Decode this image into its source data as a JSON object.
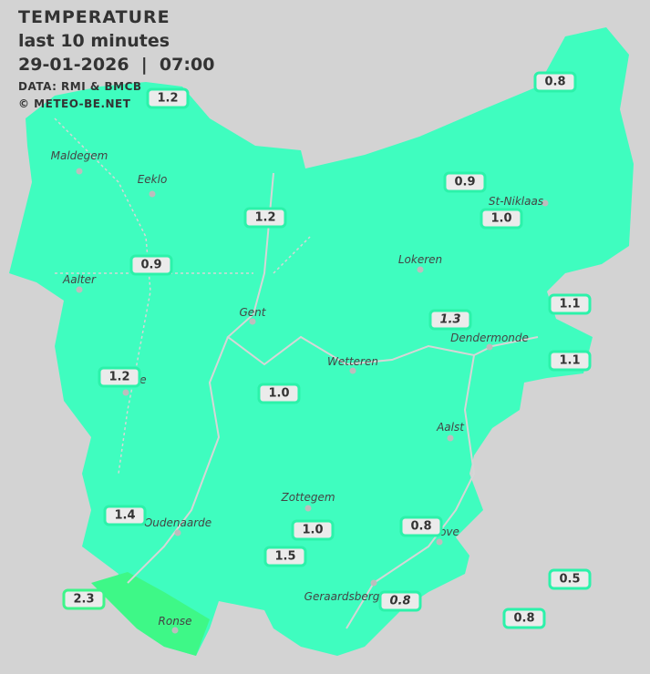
{
  "header": {
    "title": "TEMPERATURE",
    "period": "last 10 minutes",
    "datetime": "29-01-2026  |  07:00",
    "source": "DATA: RMI & BMCB",
    "copyright": "© METEO-BE.NET"
  },
  "colors": {
    "background": "#d3d3d3",
    "region_fill": "#3ffdbf",
    "warm_fill": "#3ef887",
    "label_border": "#2cf2aa"
  },
  "towns": [
    "Maldegem",
    "Eeklo",
    "St-Niklaas",
    "Lokeren",
    "Aalter",
    "Gent",
    "Dendermonde",
    "Wetteren",
    "e",
    "Aalst",
    "Zottegem",
    "Oudenaarde",
    "ove",
    "Geraardsberg",
    "Ronse"
  ],
  "stations": [
    {
      "value": "1.2"
    },
    {
      "value": "0.8"
    },
    {
      "value": "0.9"
    },
    {
      "value": "1.0"
    },
    {
      "value": "1.2"
    },
    {
      "value": "0.9"
    },
    {
      "value": "1.1"
    },
    {
      "value": "1.3",
      "italic": true
    },
    {
      "value": "1.1"
    },
    {
      "value": "1.2"
    },
    {
      "value": "1.0"
    },
    {
      "value": "1.4"
    },
    {
      "value": "1.0"
    },
    {
      "value": "0.8"
    },
    {
      "value": "1.5"
    },
    {
      "value": "0.5"
    },
    {
      "value": "2.3"
    },
    {
      "value": "0.8",
      "italic": true
    },
    {
      "value": "0.8"
    }
  ]
}
